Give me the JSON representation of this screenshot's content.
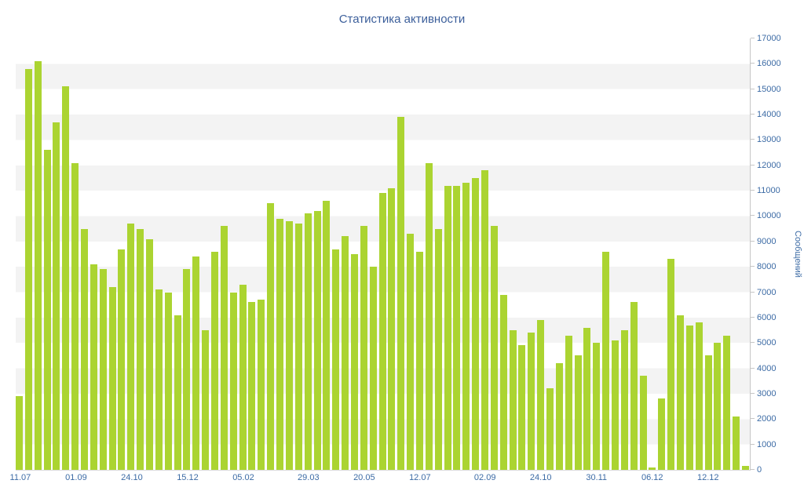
{
  "title": "Статистика активности",
  "colors": {
    "bar": "#abd431",
    "axis_text": "#3c6ba5",
    "title_text": "#3c5f9b",
    "grid_band": "#f3f3f3",
    "axis_line": "#c6c6c6"
  },
  "chart_data": {
    "type": "bar",
    "title": "Статистика активности",
    "xlabel": "",
    "ylabel": "Сообщений",
    "ylim": [
      0,
      17000
    ],
    "ytick_step": 1000,
    "legend": "none",
    "grid": "horizontal-bands",
    "yaxis_position": "right",
    "values": [
      2900,
      15800,
      16100,
      12600,
      13700,
      15100,
      12100,
      9500,
      8100,
      7900,
      7200,
      8700,
      9700,
      9500,
      9100,
      7100,
      7000,
      6100,
      7900,
      8400,
      5500,
      8600,
      9600,
      7000,
      7300,
      6600,
      6700,
      10500,
      9900,
      9800,
      9700,
      10100,
      10200,
      10600,
      8700,
      9200,
      8500,
      9600,
      8000,
      10900,
      11100,
      13900,
      9300,
      8600,
      12100,
      9500,
      11200,
      11200,
      11300,
      11500,
      11800,
      9600,
      6900,
      5500,
      4900,
      5400,
      5900,
      3200,
      4200,
      5300,
      4500,
      5600,
      5000,
      8600,
      5100,
      5500,
      6600,
      3700,
      100,
      2800,
      8300,
      6100,
      5700,
      5800,
      4500,
      5000,
      5300,
      2100,
      150
    ],
    "xticks": [
      {
        "label": "11.07",
        "index": 0
      },
      {
        "label": "01.09",
        "index": 6
      },
      {
        "label": "24.10",
        "index": 12
      },
      {
        "label": "15.12",
        "index": 18
      },
      {
        "label": "05.02",
        "index": 24
      },
      {
        "label": "29.03",
        "index": 31
      },
      {
        "label": "20.05",
        "index": 37
      },
      {
        "label": "12.07",
        "index": 43
      },
      {
        "label": "02.09",
        "index": 50
      },
      {
        "label": "24.10",
        "index": 56
      },
      {
        "label": "30.11",
        "index": 62
      },
      {
        "label": "06.12",
        "index": 68
      },
      {
        "label": "12.12",
        "index": 74
      }
    ]
  }
}
